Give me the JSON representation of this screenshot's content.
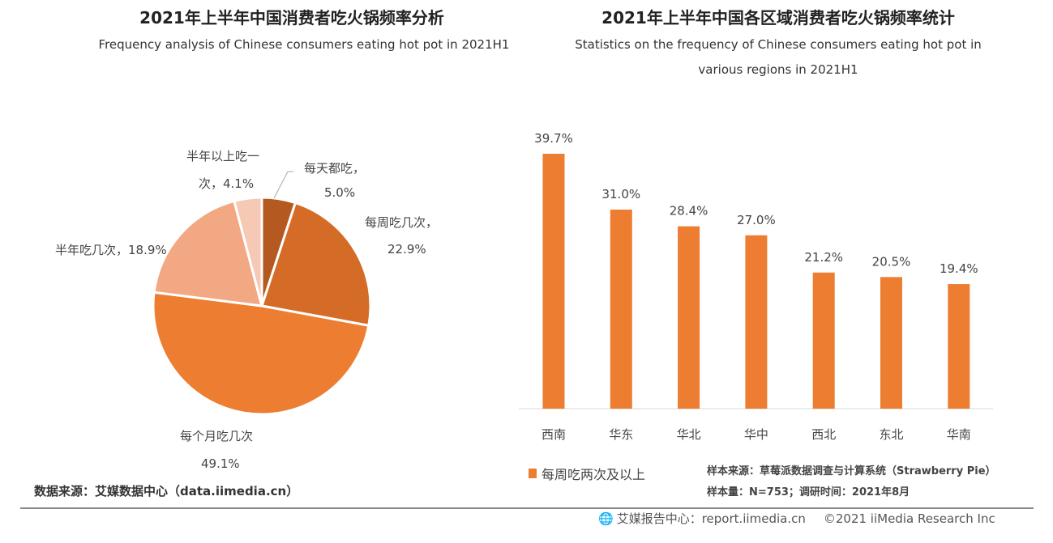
{
  "chart_data": [
    {
      "type": "pie",
      "title": "2021年上半年中国消费者吃火锅频率分析",
      "subtitle": "Frequency analysis of Chinese consumers eating hot pot in 2021H1",
      "slices": [
        {
          "label": "每天都吃，",
          "value": 5.0,
          "value_label": "5.0%",
          "color": "#b45a20"
        },
        {
          "label": "每周吃几次，",
          "value": 22.9,
          "value_label": "22.9%",
          "color": "#d46c28"
        },
        {
          "label": "每个月吃几次",
          "value": 49.1,
          "value_label": "49.1%",
          "color": "#ed7d31"
        },
        {
          "label": "半年吃几次，",
          "value": 18.9,
          "value_label": "18.9%",
          "color": "#f1a883"
        },
        {
          "label": "半年以上吃一次，",
          "value": 4.1,
          "value_label": "4.1%",
          "color": "#f6c9b5"
        }
      ]
    },
    {
      "type": "bar",
      "title": "2021年上半年中国各区域消费者吃火锅频率统计",
      "subtitle": "Statistics on the frequency of Chinese consumers eating hot pot in various regions in 2021H1",
      "categories": [
        "西南",
        "华东",
        "华北",
        "华中",
        "西北",
        "东北",
        "华南"
      ],
      "series": [
        {
          "name": "每周吃两次及以上",
          "values": [
            39.7,
            31.0,
            28.4,
            27.0,
            21.2,
            20.5,
            19.4
          ],
          "color": "#ed7d31"
        }
      ],
      "ylim": [
        0,
        40
      ],
      "grid": false,
      "legend": "bottom-left"
    }
  ],
  "left_source": "数据来源：艾媒数据中心（data.iimedia.cn）",
  "right_notes": [
    "样本来源：草莓派数据调查与计算系统（Strawberry Pie）",
    "样本量：N=753；调研时间：2021年8月"
  ],
  "footer": {
    "site": "艾媒报告中心：report.iimedia.cn",
    "copyright": "©2021  iiMedia Research  Inc",
    "icon": "globe-cursor-icon"
  }
}
